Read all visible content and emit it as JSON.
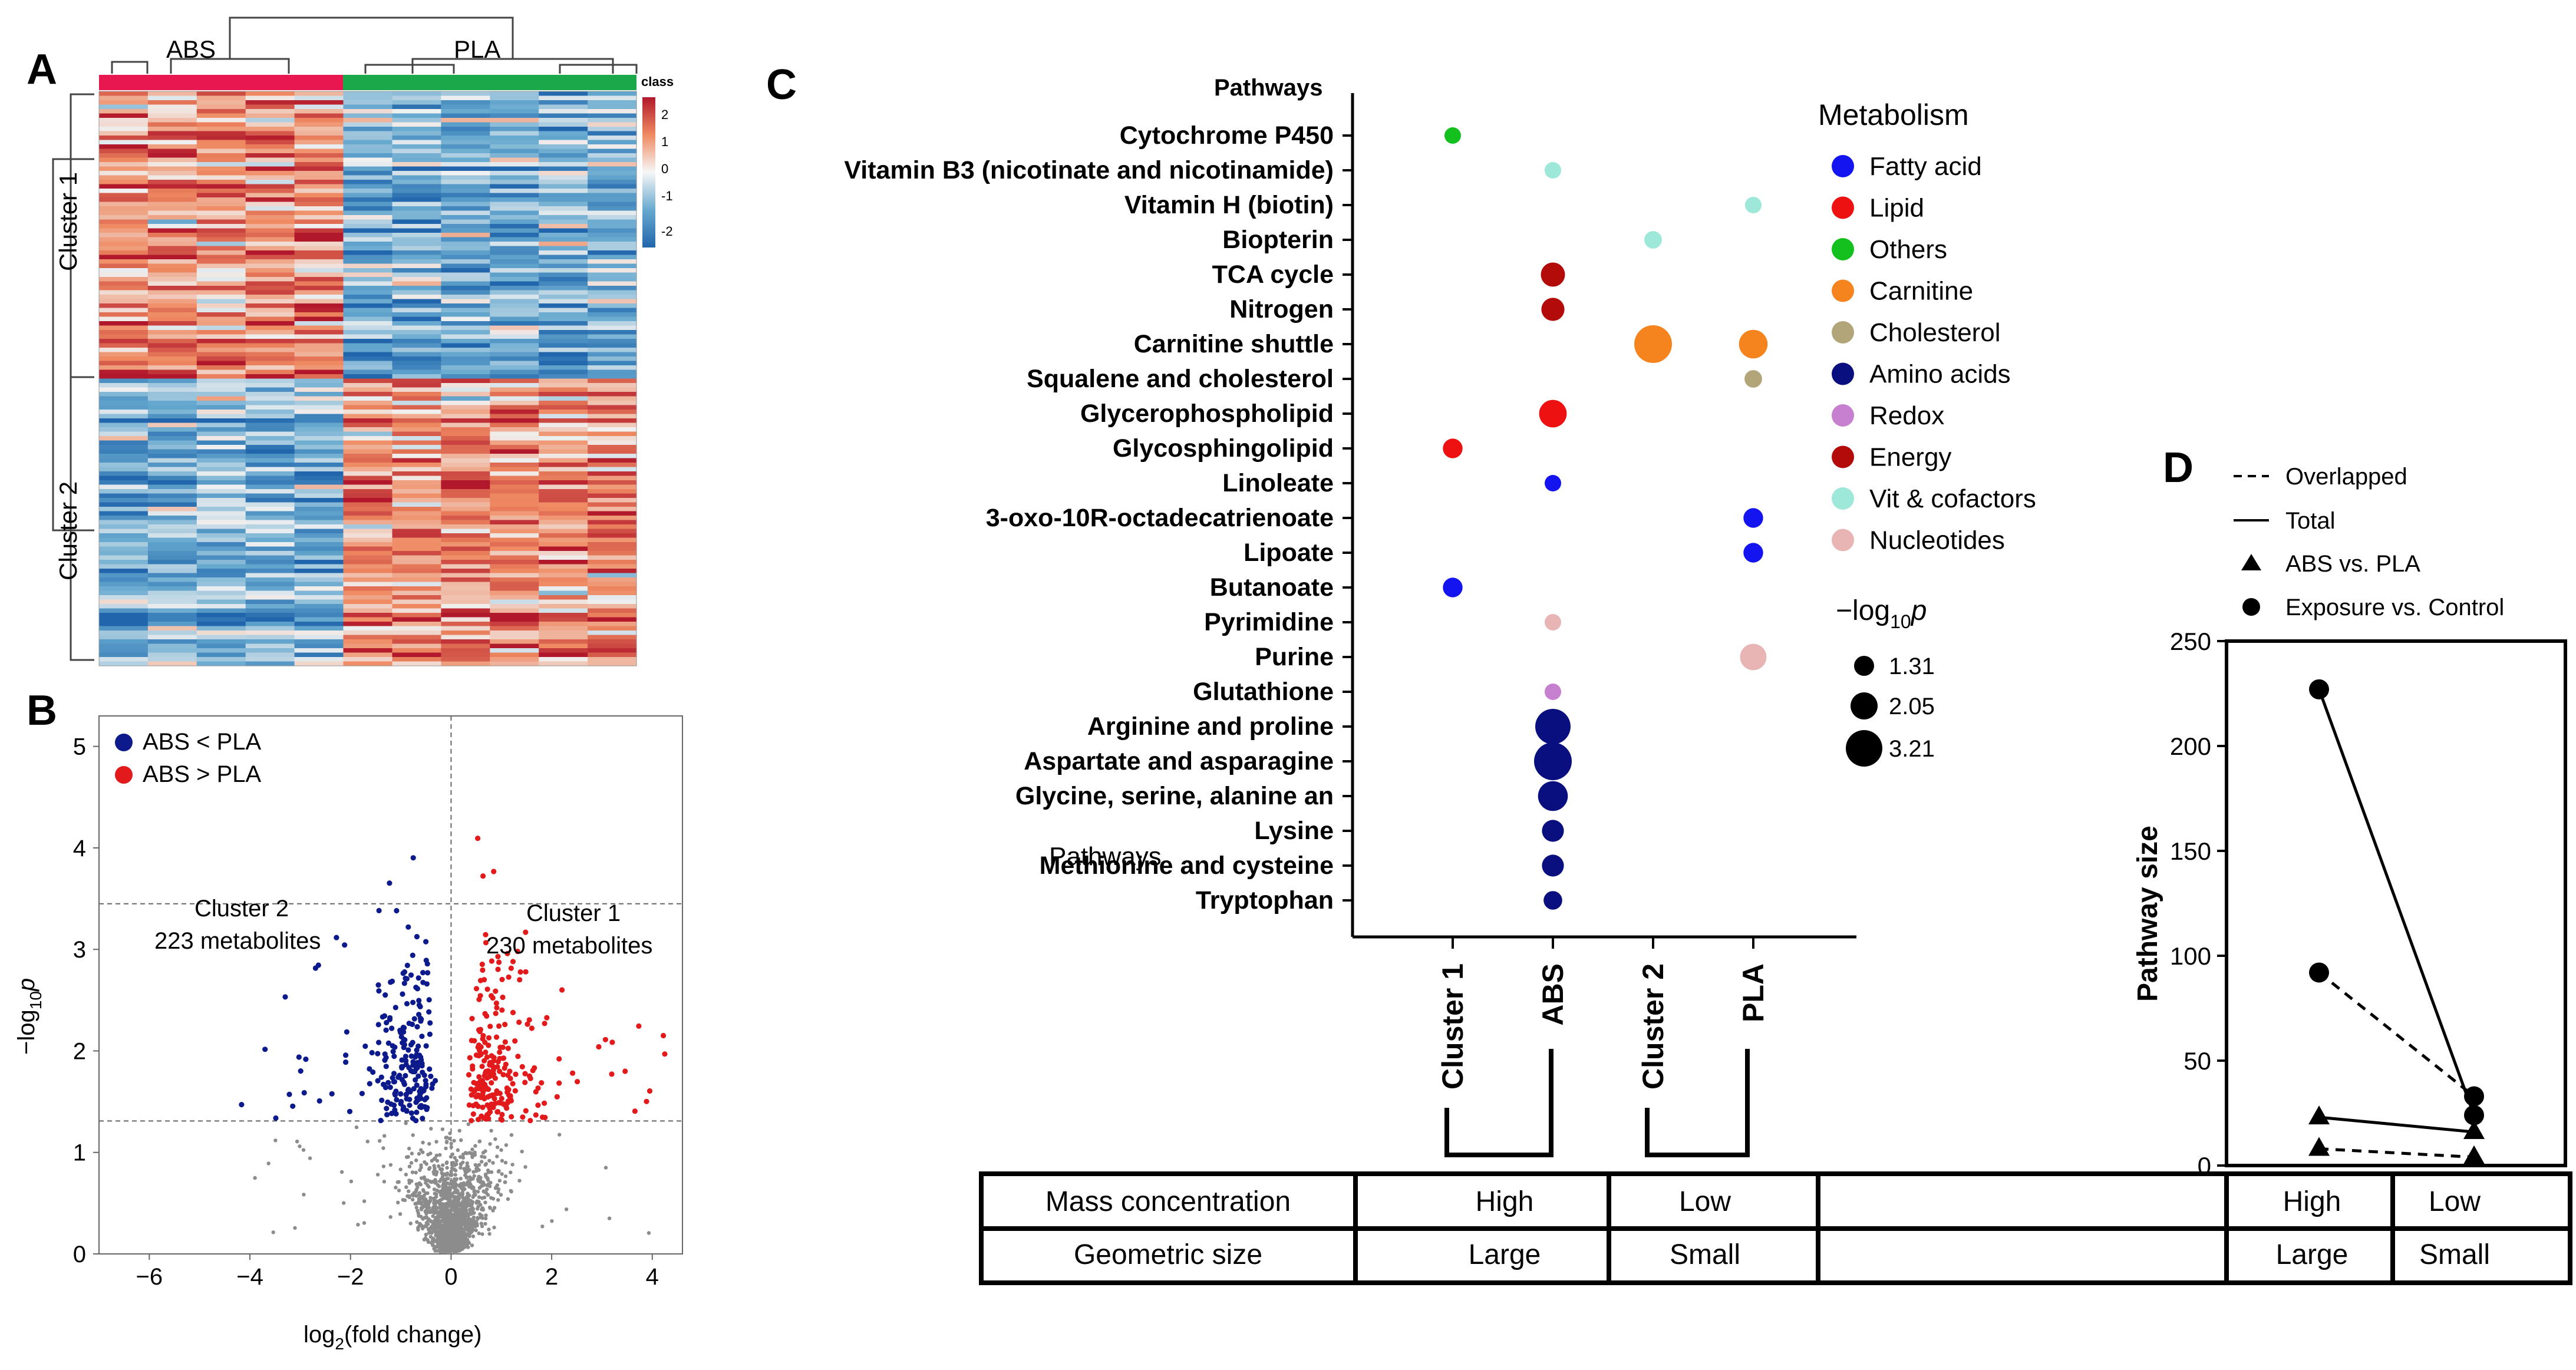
{
  "panel_labels": {
    "a": "A",
    "b": "B",
    "c": "C",
    "d": "D"
  },
  "colors": {
    "abs": "#e8174f",
    "pla": "#1aa84b",
    "heat_hi": "#b2182b",
    "heat_lo": "#2166ac",
    "vol_neg": "#0d1a8c",
    "vol_pos": "#e31a1c",
    "vol_ns": "#8c8c8c"
  },
  "heatmap": {
    "groups": [
      "ABS",
      "PLA"
    ],
    "clusters": [
      "Cluster 1",
      "Cluster 2"
    ],
    "colorbar": {
      "title": "class",
      "ticks": [
        "2",
        "1",
        "0",
        "-1",
        "-2"
      ]
    }
  },
  "volcano": {
    "legend": [
      "ABS < PLA",
      "ABS > PLA"
    ],
    "annotations": [
      {
        "line1": "Cluster 2",
        "line2": "223 metabolites"
      },
      {
        "line1": "Cluster 1",
        "line2": "230 metabolites"
      }
    ]
  },
  "panel_c": {
    "header": "Pathways",
    "overlap_text": "Pathways",
    "metabolism_title": "Metabolism",
    "size_title": "−log",
    "size_title_sub": "10",
    "size_title_p": "p",
    "x_labels": [
      "Cluster 1",
      "ABS",
      "Cluster 2",
      "PLA"
    ],
    "size_legend": [
      "1.31",
      "2.05",
      "3.21"
    ]
  },
  "panel_d": {
    "legend": [
      "Overlapped",
      "Total",
      "ABS vs. PLA",
      "Exposure vs. Control"
    ]
  },
  "table": {
    "rows": [
      [
        "Mass concentration",
        "High",
        "Low",
        "High",
        "Low"
      ],
      [
        "Geometric size",
        "Large",
        "Small",
        "Large",
        "Small"
      ]
    ]
  },
  "chart_data": [
    {
      "id": "A",
      "type": "heatmap",
      "title": "",
      "column_groups": [
        "ABS",
        "PLA"
      ],
      "columns_per_group": [
        5,
        6
      ],
      "row_clusters": [
        "Cluster 1",
        "Cluster 2"
      ],
      "value_range": [
        -2,
        2
      ],
      "colorbar_label": "class"
    },
    {
      "id": "B",
      "type": "scatter",
      "xlabel": "log",
      "xlabel_sub": "2",
      "xlabel_rest": "(fold change)",
      "ylabel": "−log",
      "ylabel_sub": "10",
      "ylabel_p": "p",
      "xlim": [
        -7,
        4.6
      ],
      "ylim": [
        0,
        5.3
      ],
      "xticks": [
        -6,
        -4,
        -2,
        0,
        2,
        4
      ],
      "yticks": [
        0,
        1,
        2,
        3,
        4,
        5
      ],
      "threshold_y": 1.31,
      "upper_line_y": 3.45,
      "series": [
        {
          "name": "ABS < PLA",
          "count": 223
        },
        {
          "name": "ABS > PLA",
          "count": 230
        }
      ]
    },
    {
      "id": "C",
      "type": "scatter",
      "x_categories": [
        "Cluster 1",
        "ABS",
        "Cluster 2",
        "PLA"
      ],
      "pathways": [
        "Cytochrome P450",
        "Vitamin B3 (nicotinate and nicotinamide)",
        "Vitamin H (biotin)",
        "Biopterin",
        "TCA cycle",
        "Nitrogen",
        "Carnitine shuttle",
        "Squalene and cholesterol ",
        "Glycerophospholipid",
        "Glycosphingolipid",
        "Linoleate",
        "3-oxo-10R-octadecatrienoate",
        "Lipoate",
        "Butanoate",
        "Pyrimidine",
        "Purine",
        "Glutathione",
        "Arginine and proline",
        "Aspartate and asparagine",
        "Glycine, serine, alanine an",
        "Lysine",
        "Methionine and cysteine",
        "Tryptophan"
      ],
      "metabolism": [
        {
          "name": "Fatty acid",
          "color": "#1414f0"
        },
        {
          "name": "Lipid",
          "color": "#ee1111"
        },
        {
          "name": "Others",
          "color": "#14c01e"
        },
        {
          "name": "Carnitine",
          "color": "#f5841f"
        },
        {
          "name": "Cholesterol",
          "color": "#b3a57a"
        },
        {
          "name": "Amino acids",
          "color": "#0a0f80"
        },
        {
          "name": "Redox",
          "color": "#c77fcf"
        },
        {
          "name": "Energy",
          "color": "#b30a0a"
        },
        {
          "name": "Vit & cofactors",
          "color": "#9de8d8"
        },
        {
          "name": "Nucleotides",
          "color": "#e8b4b4"
        }
      ],
      "points": [
        {
          "pathway": "Cytochrome P450",
          "group": "Cluster 1",
          "metabolism": "Others",
          "neglog10p": 1.31
        },
        {
          "pathway": "Vitamin B3 (nicotinate and nicotinamide)",
          "group": "ABS",
          "metabolism": "Vit & cofactors",
          "neglog10p": 1.31
        },
        {
          "pathway": "Vitamin H (biotin)",
          "group": "PLA",
          "metabolism": "Vit & cofactors",
          "neglog10p": 1.31
        },
        {
          "pathway": "Biopterin",
          "group": "Cluster 2",
          "metabolism": "Vit & cofactors",
          "neglog10p": 1.4
        },
        {
          "pathway": "TCA cycle",
          "group": "ABS",
          "metabolism": "Energy",
          "neglog10p": 2.0
        },
        {
          "pathway": "Nitrogen",
          "group": "ABS",
          "metabolism": "Energy",
          "neglog10p": 1.9
        },
        {
          "pathway": "Carnitine shuttle",
          "group": "Cluster 2",
          "metabolism": "Carnitine",
          "neglog10p": 3.21
        },
        {
          "pathway": "Carnitine shuttle",
          "group": "PLA",
          "metabolism": "Carnitine",
          "neglog10p": 2.4
        },
        {
          "pathway": "Squalene and cholesterol ",
          "group": "PLA",
          "metabolism": "Cholesterol",
          "neglog10p": 1.4
        },
        {
          "pathway": "Glycerophospholipid",
          "group": "ABS",
          "metabolism": "Lipid",
          "neglog10p": 2.3
        },
        {
          "pathway": "Glycosphingolipid",
          "group": "Cluster 1",
          "metabolism": "Lipid",
          "neglog10p": 1.6
        },
        {
          "pathway": "Linoleate",
          "group": "ABS",
          "metabolism": "Fatty acid",
          "neglog10p": 1.31
        },
        {
          "pathway": "3-oxo-10R-octadecatrienoate",
          "group": "PLA",
          "metabolism": "Fatty acid",
          "neglog10p": 1.6
        },
        {
          "pathway": "Lipoate",
          "group": "PLA",
          "metabolism": "Fatty acid",
          "neglog10p": 1.6
        },
        {
          "pathway": "Butanoate",
          "group": "Cluster 1",
          "metabolism": "Fatty acid",
          "neglog10p": 1.6
        },
        {
          "pathway": "Pyrimidine",
          "group": "ABS",
          "metabolism": "Nucleotides",
          "neglog10p": 1.31
        },
        {
          "pathway": "Purine",
          "group": "PLA",
          "metabolism": "Nucleotides",
          "neglog10p": 2.2
        },
        {
          "pathway": "Glutathione",
          "group": "ABS",
          "metabolism": "Redox",
          "neglog10p": 1.31
        },
        {
          "pathway": "Arginine and proline",
          "group": "ABS",
          "metabolism": "Amino acids",
          "neglog10p": 3.0
        },
        {
          "pathway": "Aspartate and asparagine",
          "group": "ABS",
          "metabolism": "Amino acids",
          "neglog10p": 3.21
        },
        {
          "pathway": "Glycine, serine, alanine an",
          "group": "ABS",
          "metabolism": "Amino acids",
          "neglog10p": 2.5
        },
        {
          "pathway": "Lysine",
          "group": "ABS",
          "metabolism": "Amino acids",
          "neglog10p": 1.8
        },
        {
          "pathway": "Methionine and cysteine",
          "group": "ABS",
          "metabolism": "Amino acids",
          "neglog10p": 1.8
        },
        {
          "pathway": "Tryptophan",
          "group": "ABS",
          "metabolism": "Amino acids",
          "neglog10p": 1.5
        }
      ]
    },
    {
      "id": "D",
      "type": "line",
      "categories": [
        "High",
        "Low"
      ],
      "ylabel": "Pathway size",
      "ylim": [
        0,
        250
      ],
      "yticks": [
        0,
        50,
        100,
        150,
        200,
        250
      ],
      "series": [
        {
          "name": "Total, Exposure vs. Control",
          "line": "solid",
          "marker": "circle",
          "values": [
            227,
            24
          ]
        },
        {
          "name": "Overlapped, Exposure vs. Control",
          "line": "dashed",
          "marker": "circle",
          "values": [
            92,
            33
          ]
        },
        {
          "name": "Total, ABS vs. PLA",
          "line": "solid",
          "marker": "triangle",
          "values": [
            23,
            16
          ]
        },
        {
          "name": "Overlapped, ABS vs. PLA",
          "line": "dashed",
          "marker": "triangle",
          "values": [
            8,
            4
          ]
        }
      ]
    }
  ]
}
